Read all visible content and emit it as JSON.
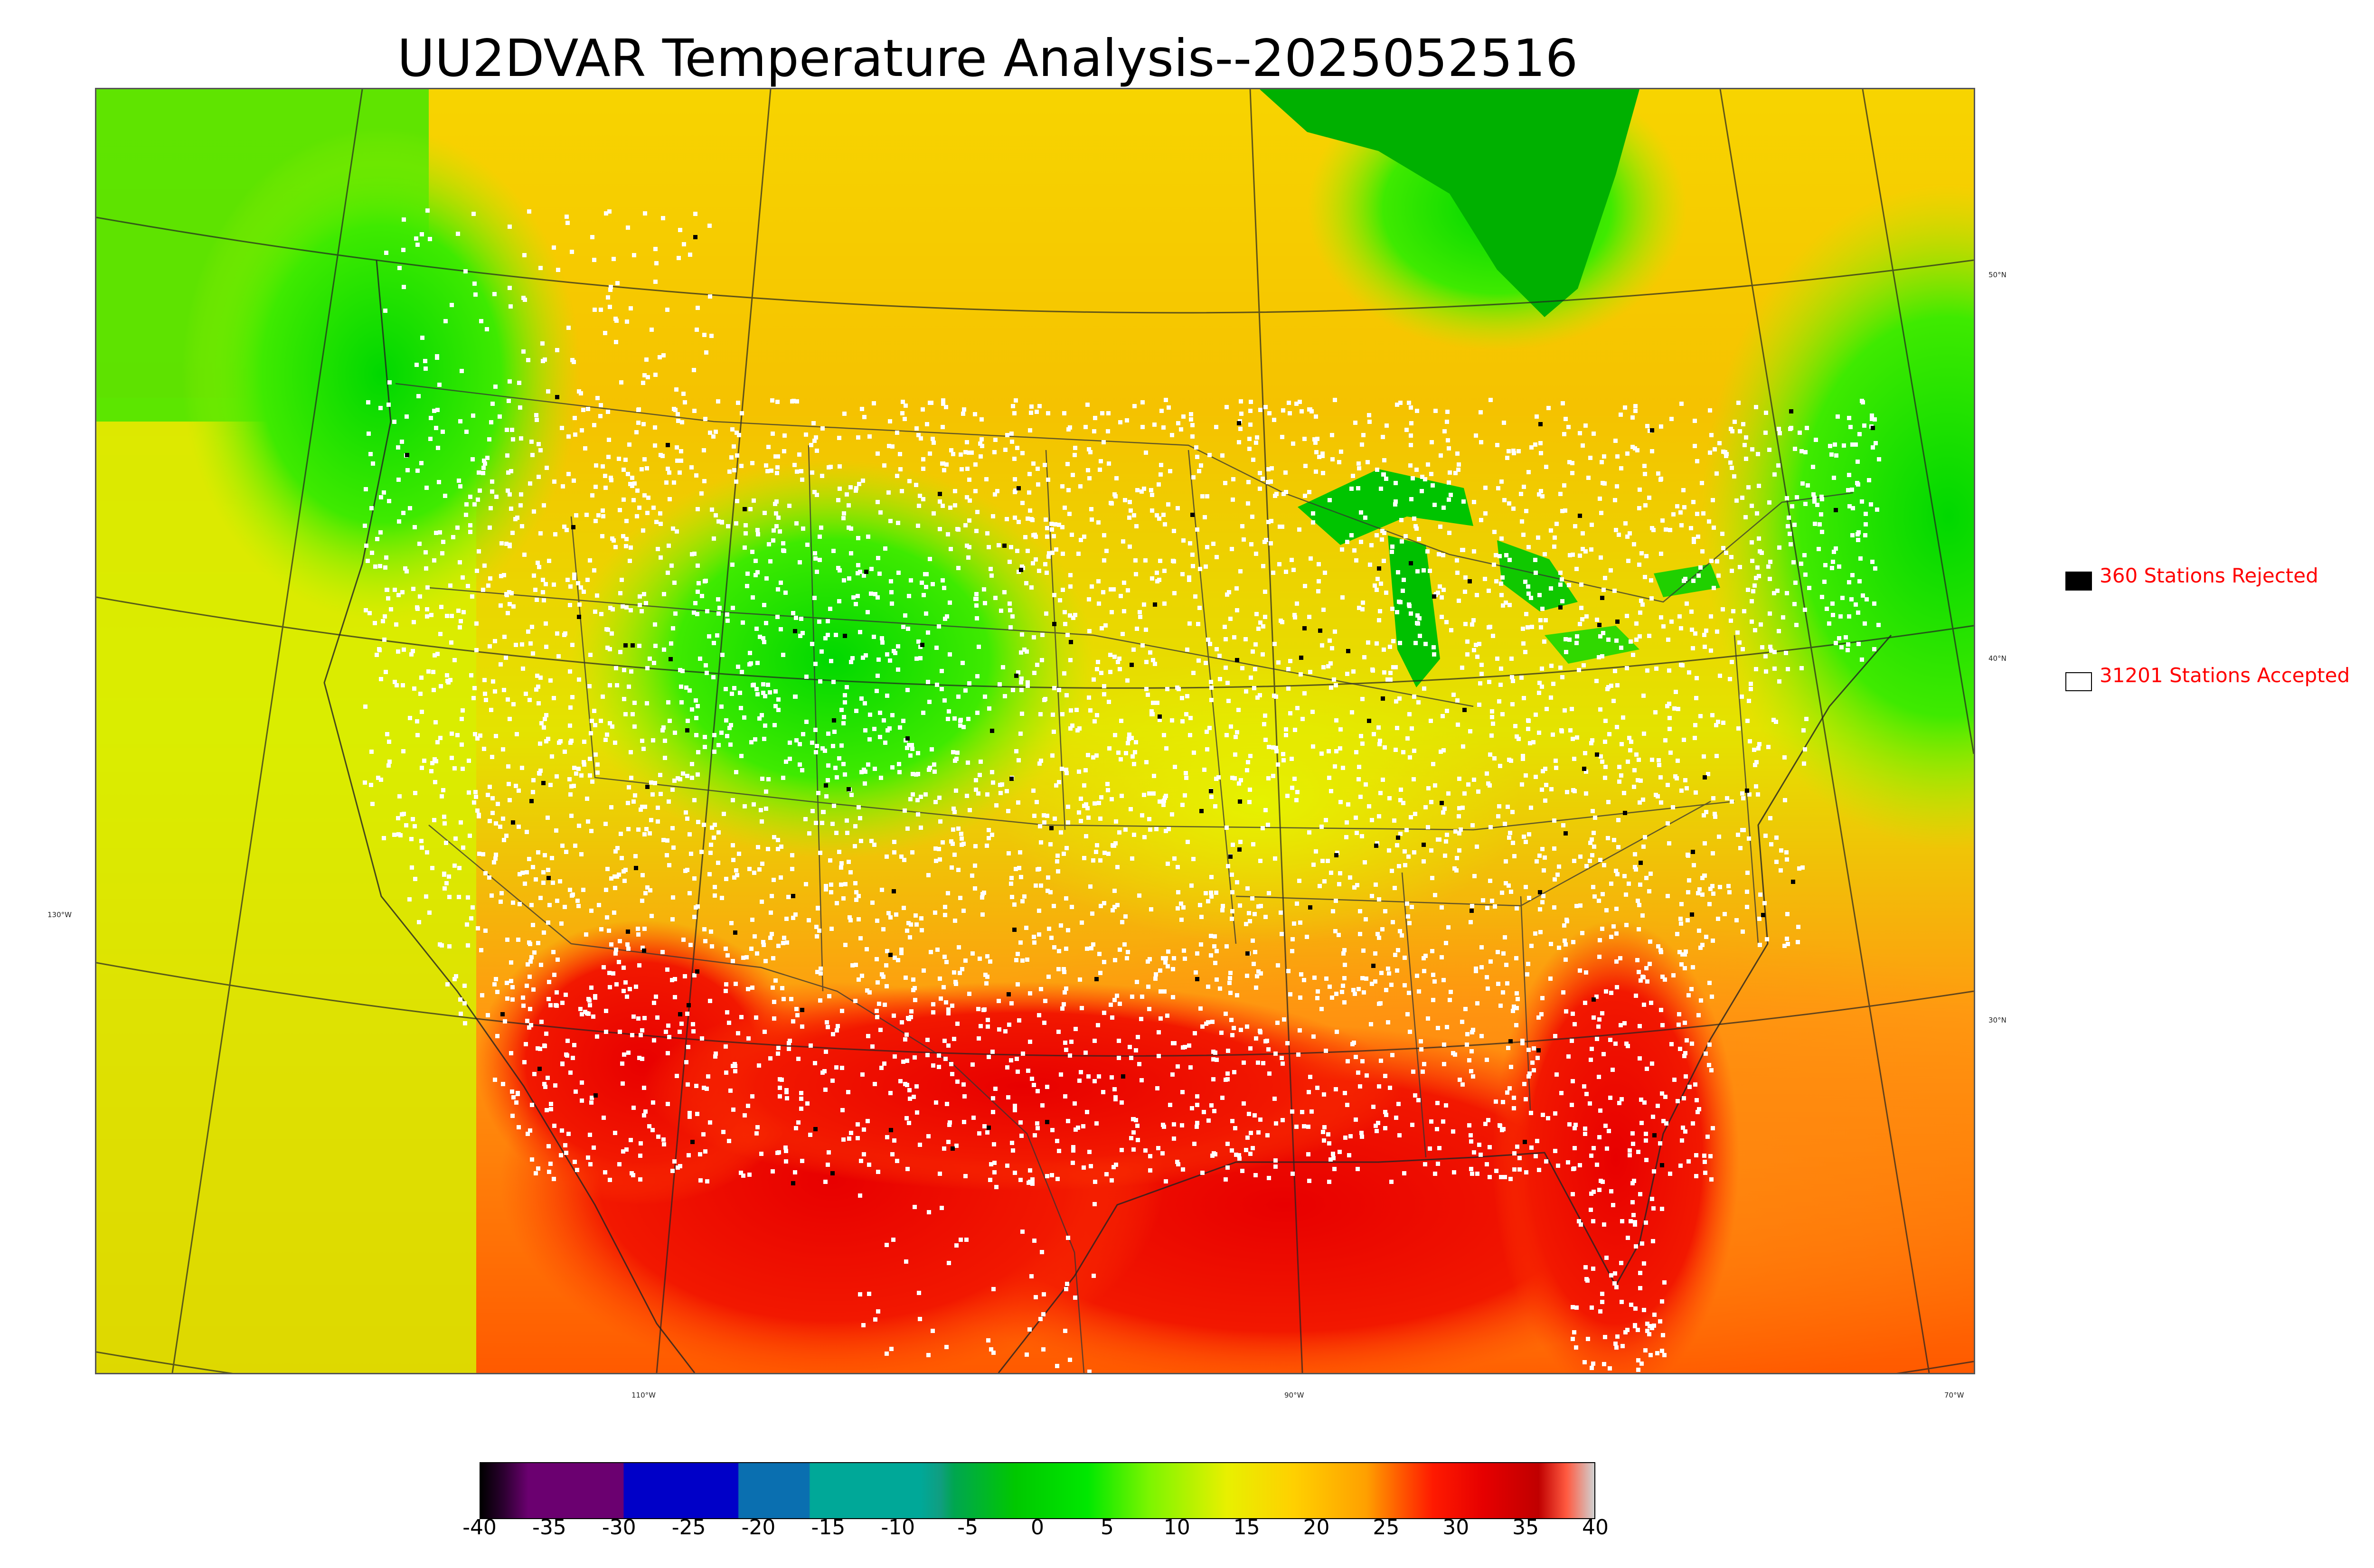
{
  "title": "UU2DVAR Temperature Analysis--2025052516",
  "lat_labels": [
    "50°N",
    "40°N",
    "30°N"
  ],
  "lon_labels": [
    "130°W",
    "110°W",
    "90°W",
    "70°W"
  ],
  "legend": {
    "rejected": {
      "label": "360 Stations Rejected",
      "color": "#000000"
    },
    "accepted": {
      "label": "31201 Stations Accepted",
      "color": "#ffffff"
    },
    "text_color": "#ff0000"
  },
  "colorbar": {
    "ticks": [
      "-40",
      "-35",
      "-30",
      "-25",
      "-20",
      "-15",
      "-10",
      "-5",
      "0",
      "5",
      "10",
      "15",
      "20",
      "25",
      "30",
      "35",
      "40"
    ],
    "colors": [
      "#000000",
      "#6b0070",
      "#0000c8",
      "#0a6fb0",
      "#00a898",
      "#00a650",
      "#00d400",
      "#7cf500",
      "#e8f000",
      "#ffb300",
      "#ff5000",
      "#e60000",
      "#d0d0d0"
    ]
  }
}
